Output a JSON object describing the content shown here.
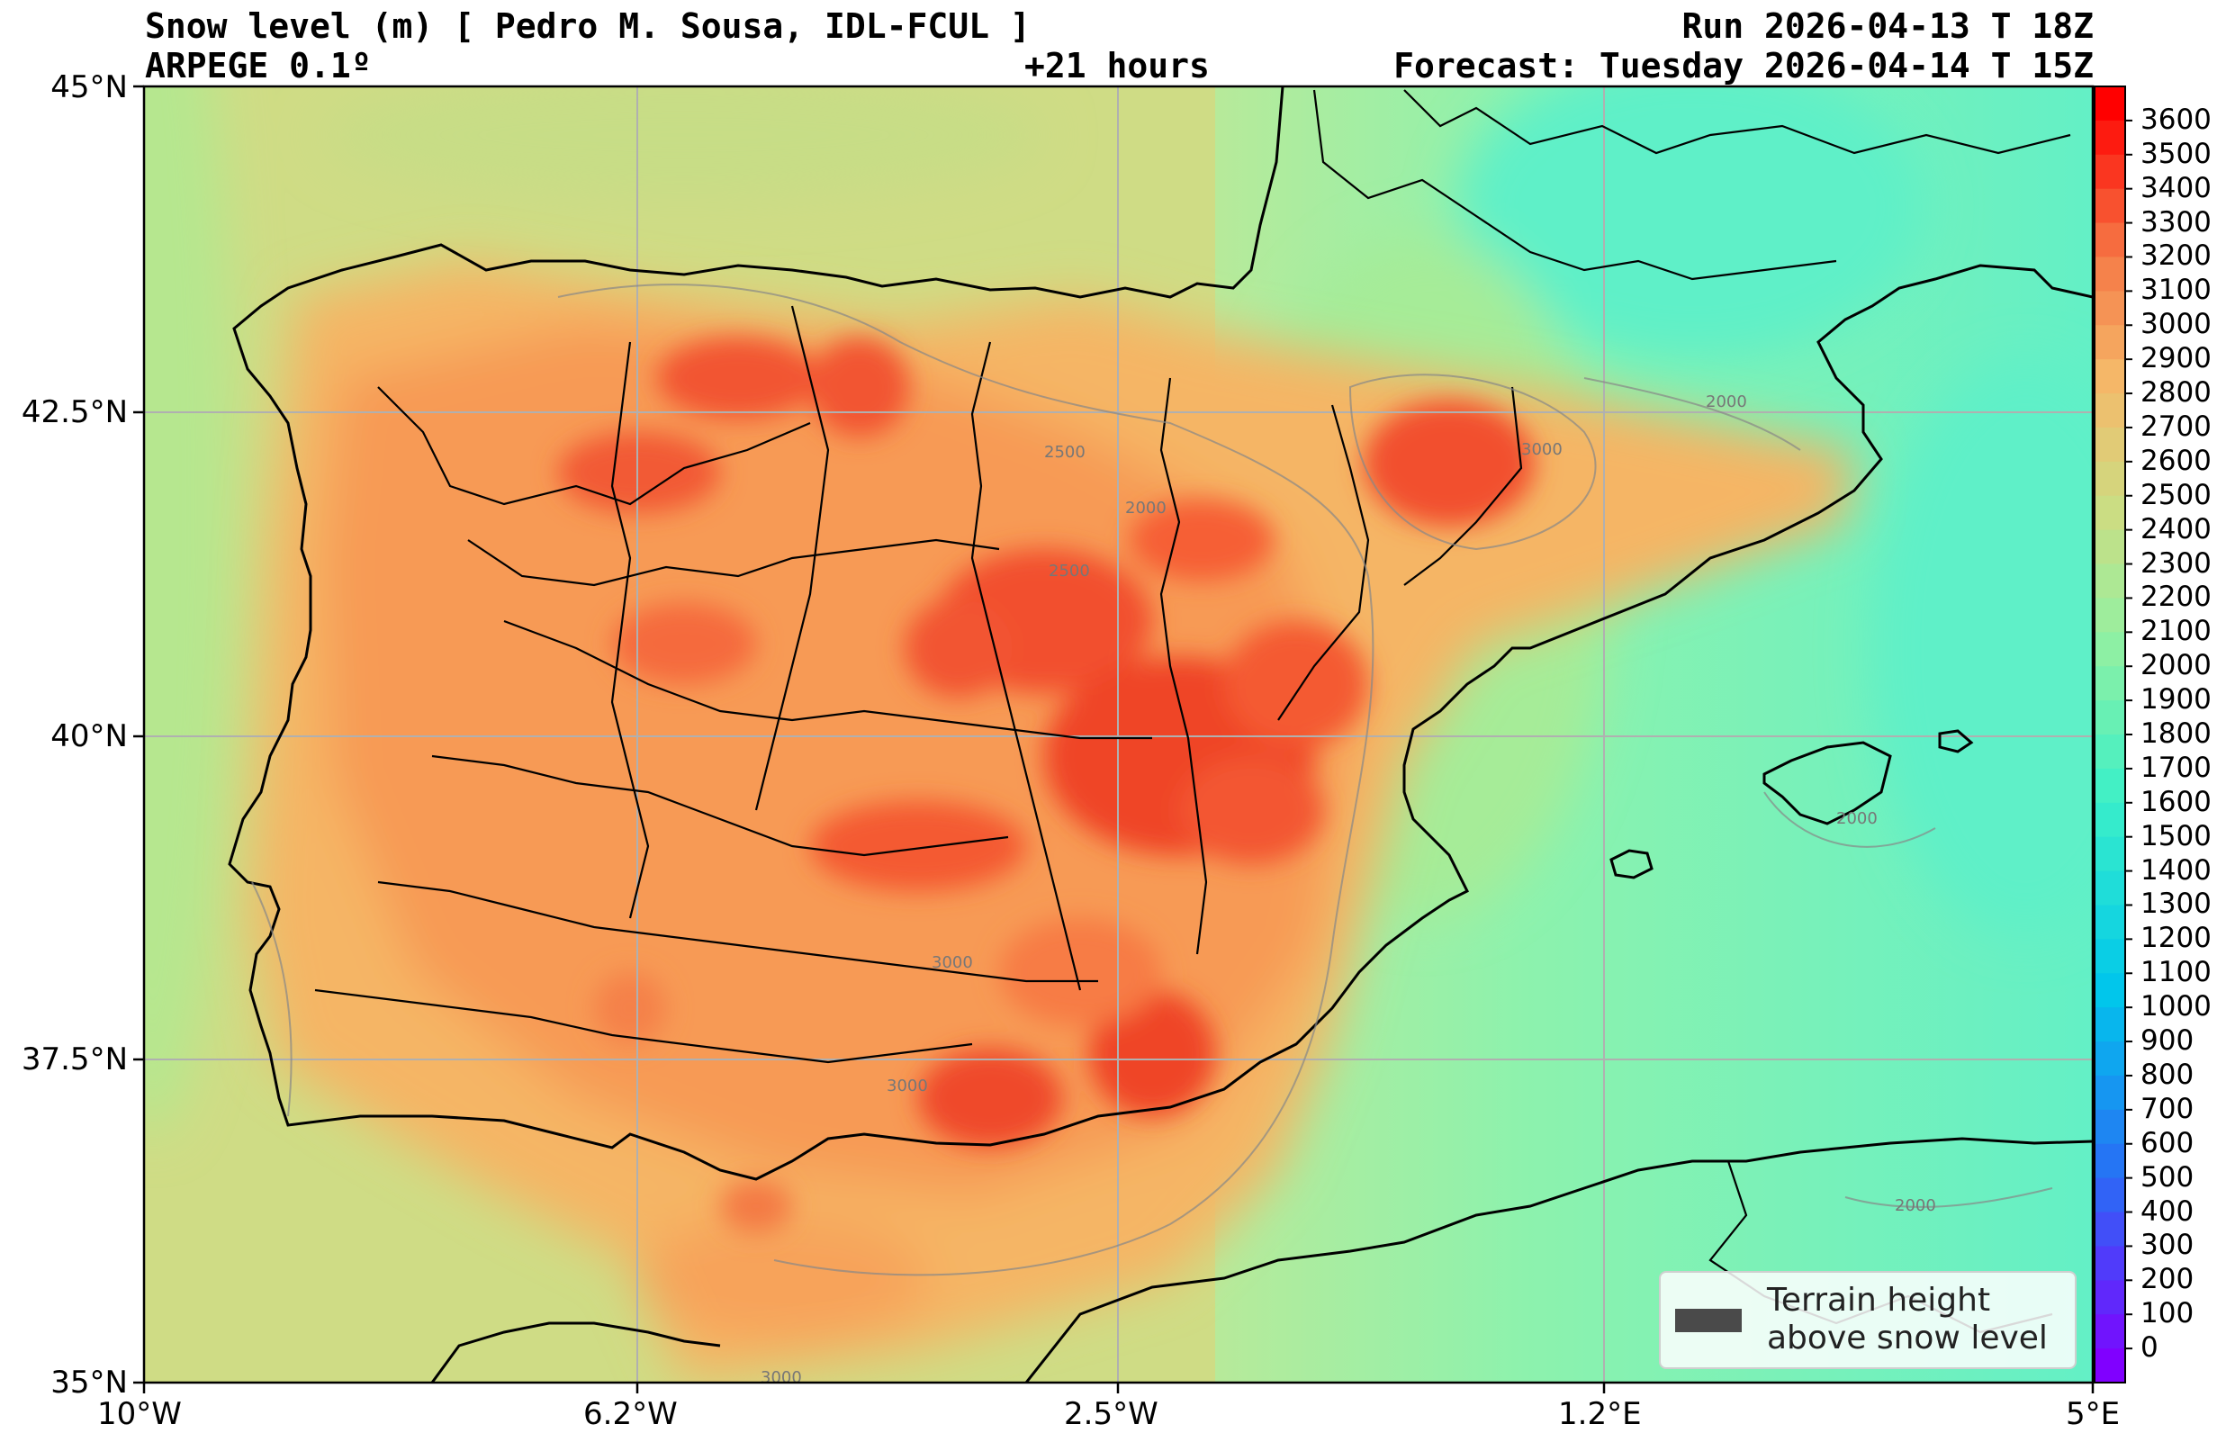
{
  "header": {
    "title": "Snow level (m) [ Pedro M. Sousa, IDL-FCUL ]",
    "model": "ARPEGE 0.1º",
    "lead_time": "+21 hours",
    "run": "Run 2026-04-13 T 18Z",
    "forecast": "Forecast: Tuesday 2026-04-14 T 15Z"
  },
  "axes": {
    "lat_labels": [
      "45°N",
      "42.5°N",
      "40°N",
      "37.5°N",
      "35°N"
    ],
    "lon_labels": [
      "10°W",
      "6.2°W",
      "2.5°W",
      "1.2°E",
      "5°E"
    ],
    "lat_range": [
      35,
      45
    ],
    "lon_range": [
      -10,
      5
    ],
    "grid": true
  },
  "colorbar": {
    "unit": "m",
    "min": 0,
    "max": 3600,
    "step": 100,
    "labels": [
      "3600",
      "3500",
      "3400",
      "3300",
      "3200",
      "3100",
      "3000",
      "2900",
      "2800",
      "2700",
      "2600",
      "2500",
      "2400",
      "2300",
      "2200",
      "2100",
      "2000",
      "1900",
      "1800",
      "1700",
      "1600",
      "1500",
      "1400",
      "1300",
      "1200",
      "1100",
      "1000",
      "900",
      "800",
      "700",
      "600",
      "500",
      "400",
      "300",
      "200",
      "100",
      "0"
    ]
  },
  "contour_labels": [
    "2500",
    "2500",
    "3000",
    "3000",
    "3000",
    "3000",
    "2000",
    "2000",
    "2000",
    "2000"
  ],
  "legend": {
    "line1": "Terrain height",
    "line2": "above snow level",
    "swatch_color": "#4a4a4a"
  },
  "colors": {
    "sea_teal": "#5ff0c8",
    "land_hot": "#f25530",
    "land_warm": "#f7a35a",
    "atlantic": "#cfdc85",
    "coast_line": "#000000",
    "grid_line": "#b0b0b0"
  }
}
